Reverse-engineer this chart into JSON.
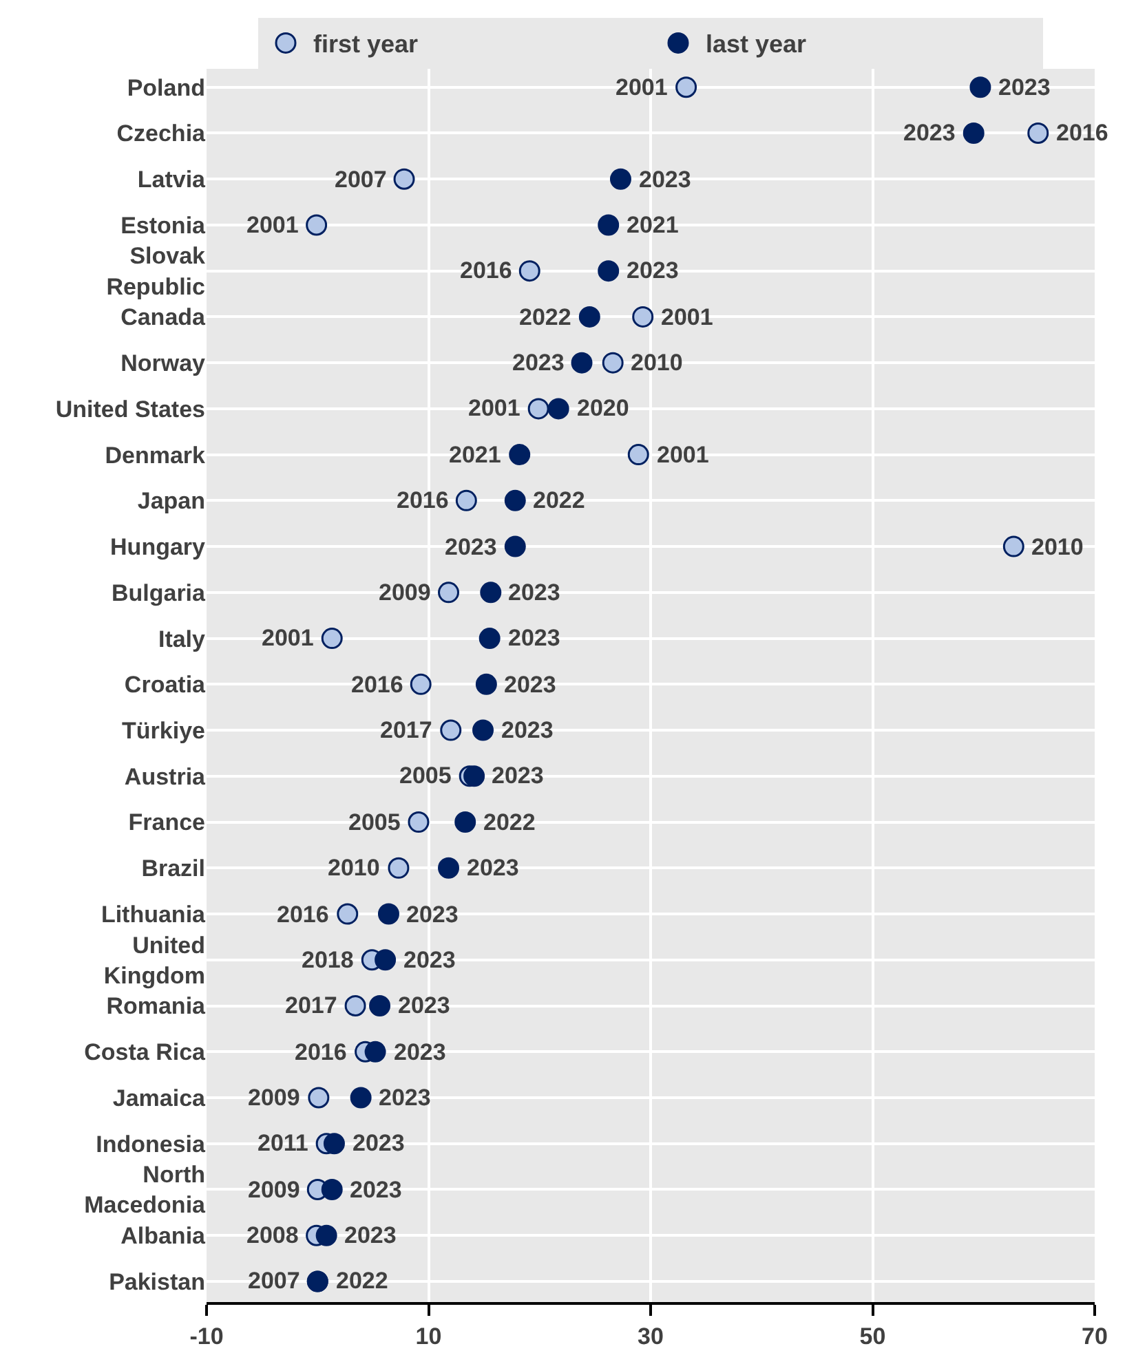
{
  "chart_data": {
    "type": "scatter",
    "orientation": "horizontal",
    "categories": [
      "Poland",
      "Czechia",
      "Latvia",
      "Estonia",
      "Slovak Republic",
      "Canada",
      "Norway",
      "United States",
      "Denmark",
      "Japan",
      "Hungary",
      "Bulgaria",
      "Italy",
      "Croatia",
      "Türkiye",
      "Austria",
      "France",
      "Brazil",
      "Lithuania",
      "United Kingdom",
      "Romania",
      "Costa Rica",
      "Jamaica",
      "Indonesia",
      "North Macedonia",
      "Albania",
      "Pakistan"
    ],
    "series": [
      {
        "name": "first year",
        "color": "#b4c7e7",
        "values": [
          33.2,
          64.9,
          7.8,
          -0.1,
          19.1,
          29.3,
          26.6,
          19.9,
          28.9,
          13.4,
          62.7,
          11.8,
          1.3,
          9.3,
          12.0,
          13.7,
          9.1,
          7.3,
          2.7,
          4.9,
          3.4,
          4.3,
          0.1,
          0.8,
          0.0,
          -0.1,
          0.0
        ]
      },
      {
        "name": "last year",
        "color": "#002060",
        "values": [
          59.7,
          59.1,
          27.3,
          26.2,
          26.2,
          24.5,
          23.8,
          21.7,
          18.2,
          17.8,
          17.8,
          15.6,
          15.5,
          15.2,
          14.9,
          14.1,
          13.3,
          11.8,
          6.4,
          6.1,
          5.6,
          5.2,
          3.9,
          1.5,
          1.3,
          0.8,
          0.0
        ]
      }
    ],
    "annotations": [
      {
        "text": "2001",
        "x": 33.2,
        "y": "Poland"
      },
      {
        "text": "2023",
        "x": 59.7,
        "y": "Poland"
      },
      {
        "text": "2016",
        "x": 64.9,
        "y": "Czechia"
      },
      {
        "text": "2023",
        "x": 59.1,
        "y": "Czechia"
      },
      {
        "text": "2007",
        "x": 7.8,
        "y": "Latvia"
      },
      {
        "text": "2023",
        "x": 27.3,
        "y": "Latvia"
      },
      {
        "text": "2001",
        "x": -0.1,
        "y": "Estonia"
      },
      {
        "text": "2021",
        "x": 26.2,
        "y": "Estonia"
      },
      {
        "text": "2016",
        "x": 19.1,
        "y": "Slovak Republic"
      },
      {
        "text": "2023",
        "x": 26.2,
        "y": "Slovak Republic"
      },
      {
        "text": "2001",
        "x": 29.3,
        "y": "Canada"
      },
      {
        "text": "2022",
        "x": 24.5,
        "y": "Canada"
      },
      {
        "text": "2010",
        "x": 26.6,
        "y": "Norway"
      },
      {
        "text": "2023",
        "x": 23.8,
        "y": "Norway"
      },
      {
        "text": "2001",
        "x": 19.9,
        "y": "United States"
      },
      {
        "text": "2020",
        "x": 21.7,
        "y": "United States"
      },
      {
        "text": "2001",
        "x": 28.9,
        "y": "Denmark"
      },
      {
        "text": "2021",
        "x": 18.2,
        "y": "Denmark"
      },
      {
        "text": "2016",
        "x": 13.4,
        "y": "Japan"
      },
      {
        "text": "2022",
        "x": 17.8,
        "y": "Japan"
      },
      {
        "text": "2010",
        "x": 62.7,
        "y": "Hungary"
      },
      {
        "text": "2023",
        "x": 17.8,
        "y": "Hungary"
      },
      {
        "text": "2009",
        "x": 11.8,
        "y": "Bulgaria"
      },
      {
        "text": "2023",
        "x": 15.6,
        "y": "Bulgaria"
      },
      {
        "text": "2001",
        "x": 1.3,
        "y": "Italy"
      },
      {
        "text": "2023",
        "x": 15.5,
        "y": "Italy"
      },
      {
        "text": "2016",
        "x": 9.3,
        "y": "Croatia"
      },
      {
        "text": "2023",
        "x": 15.2,
        "y": "Croatia"
      },
      {
        "text": "2017",
        "x": 12.0,
        "y": "Türkiye"
      },
      {
        "text": "2023",
        "x": 14.9,
        "y": "Türkiye"
      },
      {
        "text": "2005",
        "x": 13.7,
        "y": "Austria"
      },
      {
        "text": "2023",
        "x": 14.1,
        "y": "Austria"
      },
      {
        "text": "2005",
        "x": 9.1,
        "y": "France"
      },
      {
        "text": "2022",
        "x": 13.3,
        "y": "France"
      },
      {
        "text": "2010",
        "x": 7.3,
        "y": "Brazil"
      },
      {
        "text": "2023",
        "x": 11.8,
        "y": "Brazil"
      },
      {
        "text": "2016",
        "x": 2.7,
        "y": "Lithuania"
      },
      {
        "text": "2023",
        "x": 6.4,
        "y": "Lithuania"
      },
      {
        "text": "2018",
        "x": 4.9,
        "y": "United Kingdom"
      },
      {
        "text": "2023",
        "x": 6.1,
        "y": "United Kingdom"
      },
      {
        "text": "2017",
        "x": 3.4,
        "y": "Romania"
      },
      {
        "text": "2023",
        "x": 5.6,
        "y": "Romania"
      },
      {
        "text": "2016",
        "x": 4.3,
        "y": "Costa Rica"
      },
      {
        "text": "2023",
        "x": 5.2,
        "y": "Costa Rica"
      },
      {
        "text": "2009",
        "x": 0.1,
        "y": "Jamaica"
      },
      {
        "text": "2023",
        "x": 3.9,
        "y": "Jamaica"
      },
      {
        "text": "2011",
        "x": 0.8,
        "y": "Indonesia"
      },
      {
        "text": "2023",
        "x": 1.5,
        "y": "Indonesia"
      },
      {
        "text": "2009",
        "x": 0.0,
        "y": "North Macedonia"
      },
      {
        "text": "2023",
        "x": 1.3,
        "y": "North Macedonia"
      },
      {
        "text": "2008",
        "x": -0.1,
        "y": "Albania"
      },
      {
        "text": "2023",
        "x": 0.8,
        "y": "Albania"
      },
      {
        "text": "2007",
        "x": 0.0,
        "y": "Pakistan"
      },
      {
        "text": "2022",
        "x": 0.0,
        "y": "Pakistan"
      }
    ],
    "xlim": [
      -10,
      70
    ],
    "xticks": [
      -10,
      10,
      30,
      50,
      70
    ],
    "grid": true,
    "legend": "top",
    "marker": "circle"
  }
}
